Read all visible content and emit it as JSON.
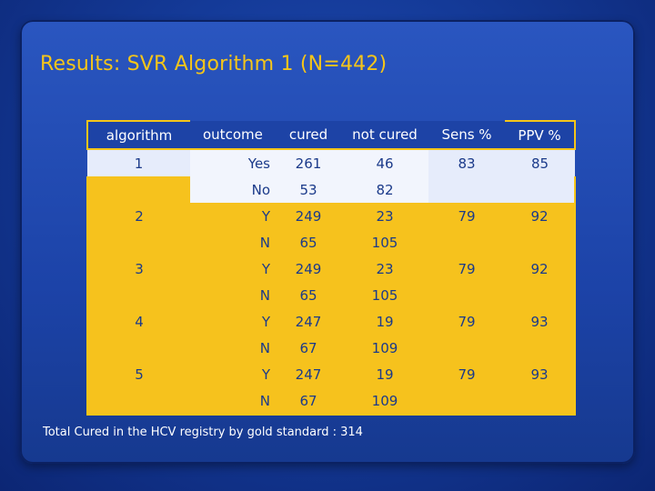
{
  "slide": {
    "title": "Results: SVR Algorithm 1 (N=442)",
    "footnote": "Total Cured in the HCV registry by gold standard : 314"
  },
  "table": {
    "headers": [
      "algorithm",
      "outcome",
      "cured",
      "not cured",
      "Sens %",
      "PPV %"
    ],
    "rows": [
      [
        "1",
        "Yes",
        "261",
        "46",
        "83",
        "85"
      ],
      [
        "",
        "No",
        "53",
        "82",
        "",
        ""
      ],
      [
        "2",
        "Y",
        "249",
        "23",
        "79",
        "92"
      ],
      [
        "",
        "N",
        "65",
        "105",
        "",
        ""
      ],
      [
        "3",
        "Y",
        "249",
        "23",
        "79",
        "92"
      ],
      [
        "",
        "N",
        "65",
        "105",
        "",
        ""
      ],
      [
        "4",
        "Y",
        "247",
        "19",
        "79",
        "93"
      ],
      [
        "",
        "N",
        "67",
        "109",
        "",
        ""
      ],
      [
        "5",
        "Y",
        "247",
        "19",
        "79",
        "93"
      ],
      [
        "",
        "N",
        "67",
        "109",
        "",
        ""
      ]
    ]
  },
  "colors": {
    "title": "#f5c519",
    "table_fill": "#f6c21d",
    "highlight_fill": "#e6ecfb",
    "cell_text": "#1b3a8a",
    "background": "#1c43a8"
  }
}
